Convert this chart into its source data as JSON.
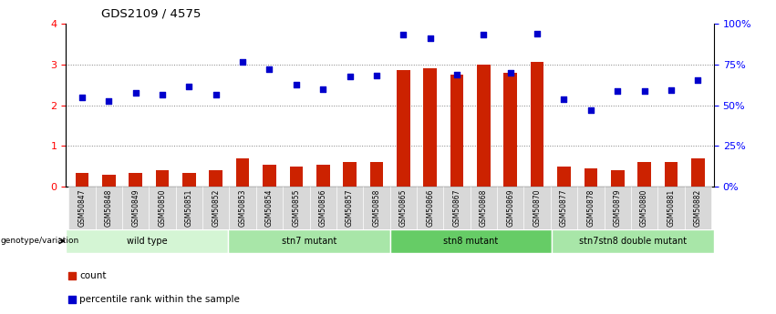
{
  "title": "GDS2109 / 4575",
  "samples": [
    "GSM50847",
    "GSM50848",
    "GSM50849",
    "GSM50850",
    "GSM50851",
    "GSM50852",
    "GSM50853",
    "GSM50854",
    "GSM50855",
    "GSM50856",
    "GSM50857",
    "GSM50858",
    "GSM50865",
    "GSM50866",
    "GSM50867",
    "GSM50868",
    "GSM50869",
    "GSM50870",
    "GSM50877",
    "GSM50878",
    "GSM50879",
    "GSM50880",
    "GSM50881",
    "GSM50882"
  ],
  "count_values": [
    0.35,
    0.3,
    0.35,
    0.4,
    0.35,
    0.4,
    0.7,
    0.55,
    0.5,
    0.55,
    0.6,
    0.6,
    2.85,
    2.9,
    2.75,
    3.0,
    2.8,
    3.05,
    0.5,
    0.45,
    0.4,
    0.6,
    0.6,
    0.7
  ],
  "percentile_values": [
    2.2,
    2.1,
    2.3,
    2.25,
    2.45,
    2.25,
    3.05,
    2.88,
    2.5,
    2.4,
    2.7,
    2.72,
    3.72,
    3.65,
    2.75,
    3.72,
    2.8,
    3.75,
    2.15,
    1.88,
    2.35,
    2.35,
    2.38,
    2.62
  ],
  "groups": [
    {
      "label": "wild type",
      "start": 0,
      "end": 6,
      "color": "#d4f5d4"
    },
    {
      "label": "stn7 mutant",
      "start": 6,
      "end": 12,
      "color": "#a8e6a8"
    },
    {
      "label": "stn8 mutant",
      "start": 12,
      "end": 18,
      "color": "#66cc66"
    },
    {
      "label": "stn7stn8 double mutant",
      "start": 18,
      "end": 24,
      "color": "#a8e6a8"
    }
  ],
  "bar_color": "#cc2200",
  "scatter_color": "#0000cc",
  "genotype_label": "genotype/variation",
  "legend_count": "count",
  "legend_percentile": "percentile rank within the sample"
}
